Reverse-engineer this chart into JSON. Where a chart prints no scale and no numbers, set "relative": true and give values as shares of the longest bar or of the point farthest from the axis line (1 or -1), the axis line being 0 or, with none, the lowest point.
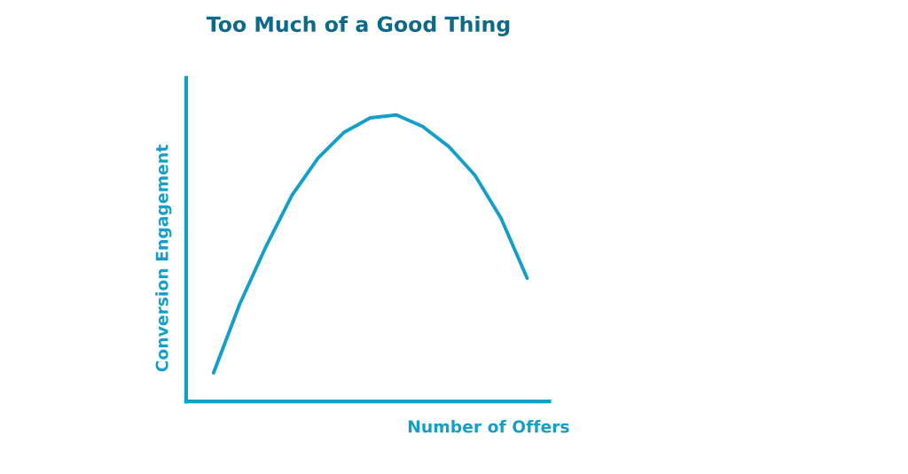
{
  "chart_data": {
    "type": "line",
    "title": "Too Much of a Good Thing",
    "xlabel": "Number of Offers",
    "ylabel": "Conversion Engagement",
    "relative": true,
    "categories": [
      null,
      null,
      null,
      null,
      null,
      null,
      null,
      null,
      null,
      null,
      null,
      null,
      null
    ],
    "series": [
      {
        "color": "#149fca",
        "values": [
          0.1,
          0.34,
          0.54,
          0.72,
          0.85,
          0.94,
          0.99,
          1.0,
          0.96,
          0.89,
          0.79,
          0.64,
          0.43
        ]
      }
    ],
    "grid": false,
    "marker": "none",
    "line_style": "solid"
  }
}
